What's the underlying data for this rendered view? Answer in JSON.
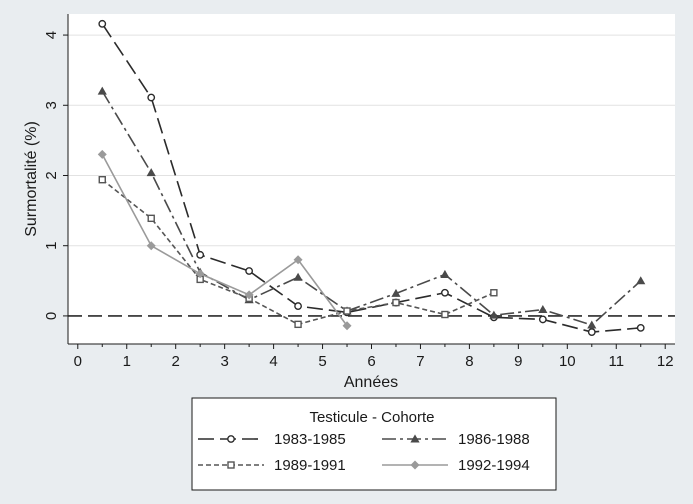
{
  "chart_data": {
    "type": "line",
    "xlabel": "Années",
    "ylabel": "Surmortalité (%)",
    "xlim": [
      -0.2,
      12.2
    ],
    "ylim": [
      -0.4,
      4.3
    ],
    "xticks": [
      "0",
      "1",
      "2",
      "3",
      "4",
      "5",
      "6",
      "7",
      "8",
      "9",
      "10",
      "11",
      "12"
    ],
    "yticks": [
      "0",
      "1",
      "2",
      "3",
      "4"
    ],
    "reference_line_y": 0,
    "grid": "horizontal",
    "legend": {
      "title": "Testicule - Cohorte",
      "placement": "bottom"
    },
    "series": [
      {
        "name": "1983-1985",
        "color": "#2b2b2b",
        "dash": "long-dash",
        "marker": "circle-hollow",
        "x": [
          0.5,
          1.5,
          2.5,
          3.5,
          4.5,
          5.5,
          6.5,
          7.5,
          8.5,
          9.5,
          10.5,
          11.5
        ],
        "y": [
          4.16,
          3.11,
          0.87,
          0.64,
          0.14,
          0.05,
          0.19,
          0.33,
          -0.02,
          -0.05,
          -0.23,
          -0.17
        ]
      },
      {
        "name": "1986-1988",
        "color": "#4a4a4a",
        "dash": "dash-dot",
        "marker": "triangle",
        "x": [
          0.5,
          1.5,
          2.5,
          3.5,
          4.5,
          5.5,
          6.5,
          7.5,
          8.5,
          9.5,
          10.5,
          11.5
        ],
        "y": [
          3.2,
          2.04,
          0.62,
          0.23,
          0.55,
          0.07,
          0.32,
          0.59,
          0.01,
          0.09,
          -0.13,
          0.5
        ]
      },
      {
        "name": "1989-1991",
        "color": "#555555",
        "dash": "short-dash",
        "marker": "square-hollow",
        "x": [
          0.5,
          1.5,
          2.5,
          3.5,
          4.5,
          5.5,
          6.5,
          7.5,
          8.5
        ],
        "y": [
          1.94,
          1.39,
          0.52,
          0.25,
          -0.12,
          0.07,
          0.19,
          0.02,
          0.33
        ]
      },
      {
        "name": "1992-1994",
        "color": "#9a9a9a",
        "dash": "solid",
        "marker": "diamond",
        "x": [
          0.5,
          1.5,
          2.5,
          3.5,
          4.5,
          5.5
        ],
        "y": [
          2.3,
          1.0,
          0.6,
          0.3,
          0.8,
          -0.14
        ]
      }
    ]
  }
}
